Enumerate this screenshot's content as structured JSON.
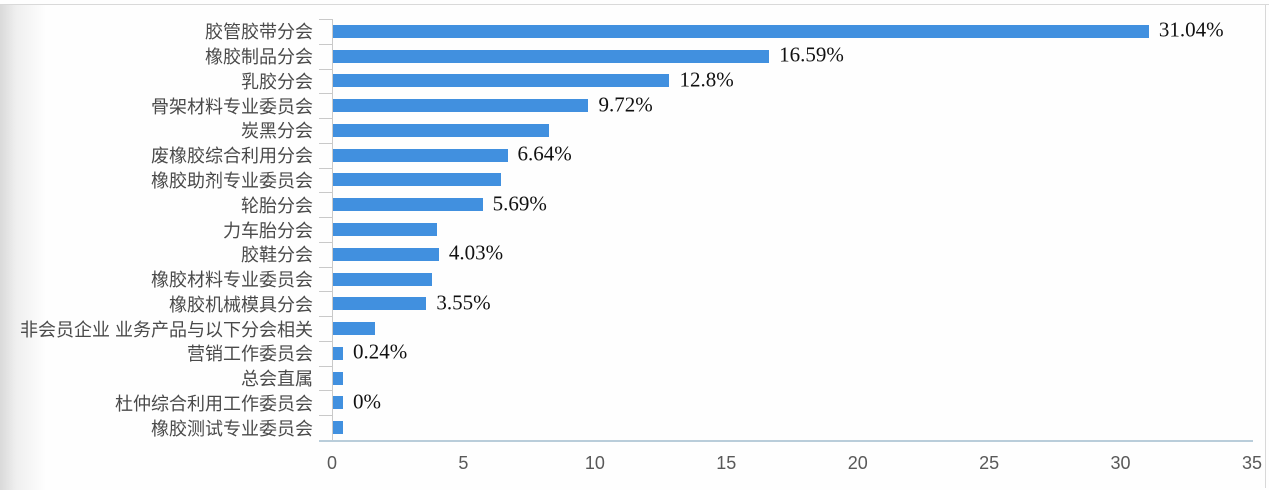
{
  "chart_data": {
    "type": "bar",
    "orientation": "horizontal",
    "title": "",
    "categories": [
      "胶管胶带分会",
      "橡胶制品分会",
      "乳胶分会",
      "骨架材料专业委员会",
      "炭黑分会",
      "废橡胶综合利用分会",
      "橡胶助剂专业委员会",
      "轮胎分会",
      "力车胎分会",
      "胶鞋分会",
      "橡胶材料专业委员会",
      "橡胶机械模具分会",
      "非会员企业 业务产品与以下分会相关",
      "营销工作委员会",
      "总会直属",
      "杜仲综合利用工作委员会",
      "橡胶测试专业委员会"
    ],
    "values": [
      31.04,
      16.59,
      12.8,
      9.72,
      8.2,
      6.64,
      6.4,
      5.69,
      3.95,
      4.03,
      3.75,
      3.55,
      1.6,
      0.24,
      0.3,
      0,
      0.35
    ],
    "data_labels": [
      "31.04%",
      "16.59%",
      "12.8%",
      "9.72%",
      "",
      "6.64%",
      "",
      "5.69%",
      "",
      "4.03%",
      "",
      "3.55%",
      "",
      "0.24%",
      "",
      "0%",
      ""
    ],
    "xlim": [
      0,
      35
    ],
    "x_ticks": [
      "0",
      "5",
      "10",
      "15",
      "20",
      "25",
      "30",
      "35"
    ],
    "legend": "none",
    "grid": false,
    "colors": {
      "bar": "#4190DF",
      "x_axis_line": "#b9cdda",
      "y_axis_line": "#c9c9c9",
      "tick_label": "#595959",
      "category_label": "#4a4a4a",
      "data_label": "#111111"
    }
  }
}
